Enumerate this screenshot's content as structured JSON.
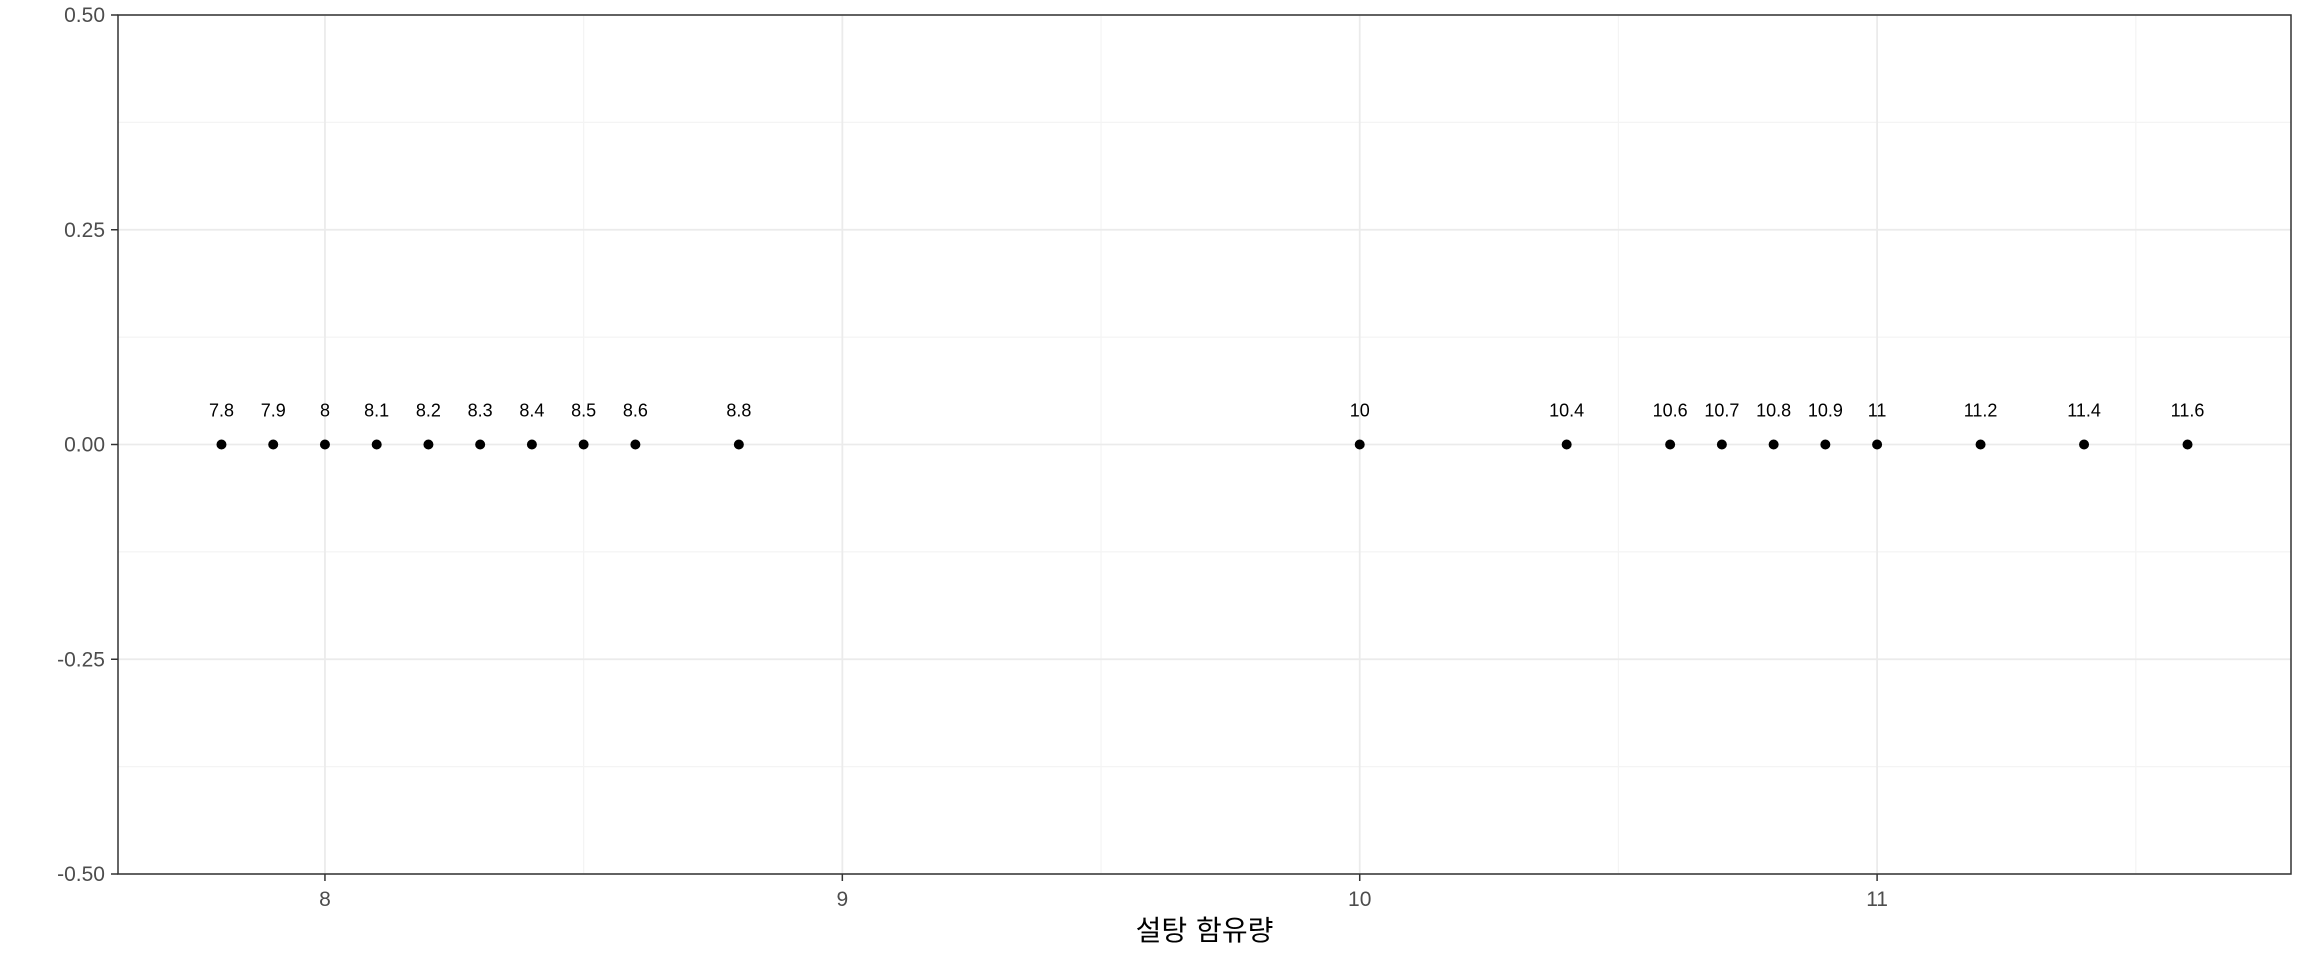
{
  "chart_data": {
    "type": "scatter",
    "title": "",
    "xlabel": "설탕 함유량",
    "ylabel": "",
    "xlim": [
      7.6,
      11.8
    ],
    "ylim": [
      -0.5,
      0.5
    ],
    "x_ticks": [
      8,
      9,
      10,
      11
    ],
    "x_tick_labels": [
      "8",
      "9",
      "10",
      "11"
    ],
    "y_ticks": [
      -0.5,
      -0.25,
      0,
      0.25,
      0.5
    ],
    "y_tick_labels": [
      "-0.50",
      "-0.25",
      "0.00",
      "0.25",
      "0.50"
    ],
    "grid": true,
    "legend": "none",
    "points": [
      {
        "x": 7.8,
        "y": 0,
        "label": "7.8"
      },
      {
        "x": 7.9,
        "y": 0,
        "label": "7.9"
      },
      {
        "x": 8.0,
        "y": 0,
        "label": "8"
      },
      {
        "x": 8.1,
        "y": 0,
        "label": "8.1"
      },
      {
        "x": 8.2,
        "y": 0,
        "label": "8.2"
      },
      {
        "x": 8.3,
        "y": 0,
        "label": "8.3"
      },
      {
        "x": 8.4,
        "y": 0,
        "label": "8.4"
      },
      {
        "x": 8.5,
        "y": 0,
        "label": "8.5"
      },
      {
        "x": 8.6,
        "y": 0,
        "label": "8.6"
      },
      {
        "x": 8.8,
        "y": 0,
        "label": "8.8"
      },
      {
        "x": 10.0,
        "y": 0,
        "label": "10"
      },
      {
        "x": 10.4,
        "y": 0,
        "label": "10.4"
      },
      {
        "x": 10.6,
        "y": 0,
        "label": "10.6"
      },
      {
        "x": 10.7,
        "y": 0,
        "label": "10.7"
      },
      {
        "x": 10.8,
        "y": 0,
        "label": "10.8"
      },
      {
        "x": 10.9,
        "y": 0,
        "label": "10.9"
      },
      {
        "x": 11.0,
        "y": 0,
        "label": "11"
      },
      {
        "x": 11.2,
        "y": 0,
        "label": "11.2"
      },
      {
        "x": 11.4,
        "y": 0,
        "label": "11.4"
      },
      {
        "x": 11.6,
        "y": 0,
        "label": "11.6"
      }
    ],
    "colors": {
      "point": "#000000",
      "grid_major": "#ebebeb",
      "grid_minor": "#f4f4f4",
      "panel_border": "#333333",
      "tick_text": "#4d4d4d"
    }
  }
}
